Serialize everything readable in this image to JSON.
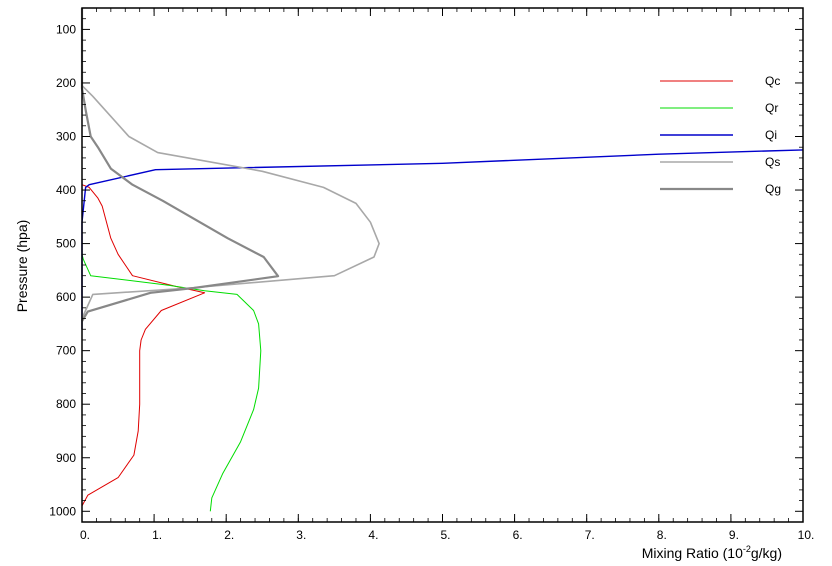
{
  "chart_data": {
    "type": "line",
    "title": "",
    "xlabel_base": "Mixing Ratio (10",
    "xlabel_sup": "-2",
    "xlabel_tail": "g/kg)",
    "ylabel": "Pressure  (hpa)",
    "xlim": [
      0,
      10
    ],
    "ylim": [
      60,
      1020
    ],
    "y_inverted": true,
    "grid": false,
    "legend_position": "top-right",
    "x_ticks": [
      {
        "value": 0,
        "label": "0."
      },
      {
        "value": 1,
        "label": "1."
      },
      {
        "value": 2,
        "label": "2."
      },
      {
        "value": 3,
        "label": "3."
      },
      {
        "value": 4,
        "label": "4."
      },
      {
        "value": 5,
        "label": "5."
      },
      {
        "value": 6,
        "label": "6."
      },
      {
        "value": 7,
        "label": "7."
      },
      {
        "value": 8,
        "label": "8."
      },
      {
        "value": 9,
        "label": "9."
      },
      {
        "value": 10,
        "label": "10."
      }
    ],
    "y_ticks": [
      {
        "value": 100,
        "label": "100"
      },
      {
        "value": 200,
        "label": "200"
      },
      {
        "value": 300,
        "label": "300"
      },
      {
        "value": 400,
        "label": "400"
      },
      {
        "value": 500,
        "label": "500"
      },
      {
        "value": 600,
        "label": "600"
      },
      {
        "value": 700,
        "label": "700"
      },
      {
        "value": 800,
        "label": "800"
      },
      {
        "value": 900,
        "label": "900"
      },
      {
        "value": 1000,
        "label": "1000"
      }
    ],
    "series": [
      {
        "name": "Qc",
        "color": "#e00000",
        "width": 1,
        "points": [
          [
            0,
            1000
          ],
          [
            0,
            990
          ],
          [
            0.08,
            970
          ],
          [
            0.5,
            937
          ],
          [
            0.72,
            895
          ],
          [
            0.78,
            850
          ],
          [
            0.8,
            800
          ],
          [
            0.8,
            750
          ],
          [
            0.8,
            700
          ],
          [
            0.82,
            680
          ],
          [
            0.88,
            660
          ],
          [
            1.1,
            625
          ],
          [
            1.7,
            592
          ],
          [
            1.3,
            580
          ],
          [
            0.7,
            560
          ],
          [
            0.6,
            540
          ],
          [
            0.5,
            520
          ],
          [
            0.4,
            490
          ],
          [
            0.28,
            430
          ],
          [
            0.22,
            415
          ],
          [
            0.1,
            395
          ],
          [
            0,
            390
          ]
        ]
      },
      {
        "name": "Qr",
        "color": "#00dd00",
        "width": 1,
        "points": [
          [
            1.78,
            1000
          ],
          [
            1.8,
            975
          ],
          [
            1.95,
            930
          ],
          [
            2.2,
            870
          ],
          [
            2.38,
            810
          ],
          [
            2.45,
            770
          ],
          [
            2.48,
            700
          ],
          [
            2.45,
            650
          ],
          [
            2.38,
            625
          ],
          [
            2.15,
            595
          ],
          [
            1.7,
            588
          ],
          [
            1.2,
            578
          ],
          [
            0.12,
            560
          ],
          [
            0.02,
            530
          ],
          [
            0,
            520
          ]
        ]
      },
      {
        "name": "Qi",
        "color": "#0000cc",
        "width": 1.4,
        "points": [
          [
            0,
            660
          ],
          [
            0,
            500
          ],
          [
            0,
            460
          ],
          [
            0.05,
            395
          ],
          [
            0.1,
            390
          ],
          [
            1.02,
            362
          ],
          [
            5,
            350
          ],
          [
            8,
            333
          ],
          [
            10,
            325
          ]
        ]
      },
      {
        "name": "Qs",
        "color": "#a8a8a8",
        "width": 1.6,
        "points": [
          [
            0,
            660
          ],
          [
            0,
            640
          ],
          [
            0.15,
            595
          ],
          [
            1.5,
            583
          ],
          [
            3.5,
            560
          ],
          [
            4.05,
            525
          ],
          [
            4.12,
            500
          ],
          [
            4.0,
            460
          ],
          [
            3.8,
            425
          ],
          [
            3.35,
            395
          ],
          [
            2.5,
            365
          ],
          [
            1.05,
            330
          ],
          [
            0.65,
            300
          ],
          [
            0.15,
            225
          ],
          [
            0,
            205
          ],
          [
            0,
            60
          ]
        ]
      },
      {
        "name": "Qg",
        "color": "#888888",
        "width": 2.2,
        "points": [
          [
            0,
            645
          ],
          [
            0.08,
            627
          ],
          [
            0.95,
            592
          ],
          [
            1.55,
            583
          ],
          [
            2.72,
            561
          ],
          [
            2.52,
            525
          ],
          [
            2.02,
            490
          ],
          [
            1.12,
            420
          ],
          [
            0.7,
            390
          ],
          [
            0.4,
            360
          ],
          [
            0.22,
            320
          ],
          [
            0.12,
            300
          ],
          [
            0.05,
            250
          ],
          [
            0,
            210
          ],
          [
            0,
            60
          ]
        ]
      }
    ]
  }
}
